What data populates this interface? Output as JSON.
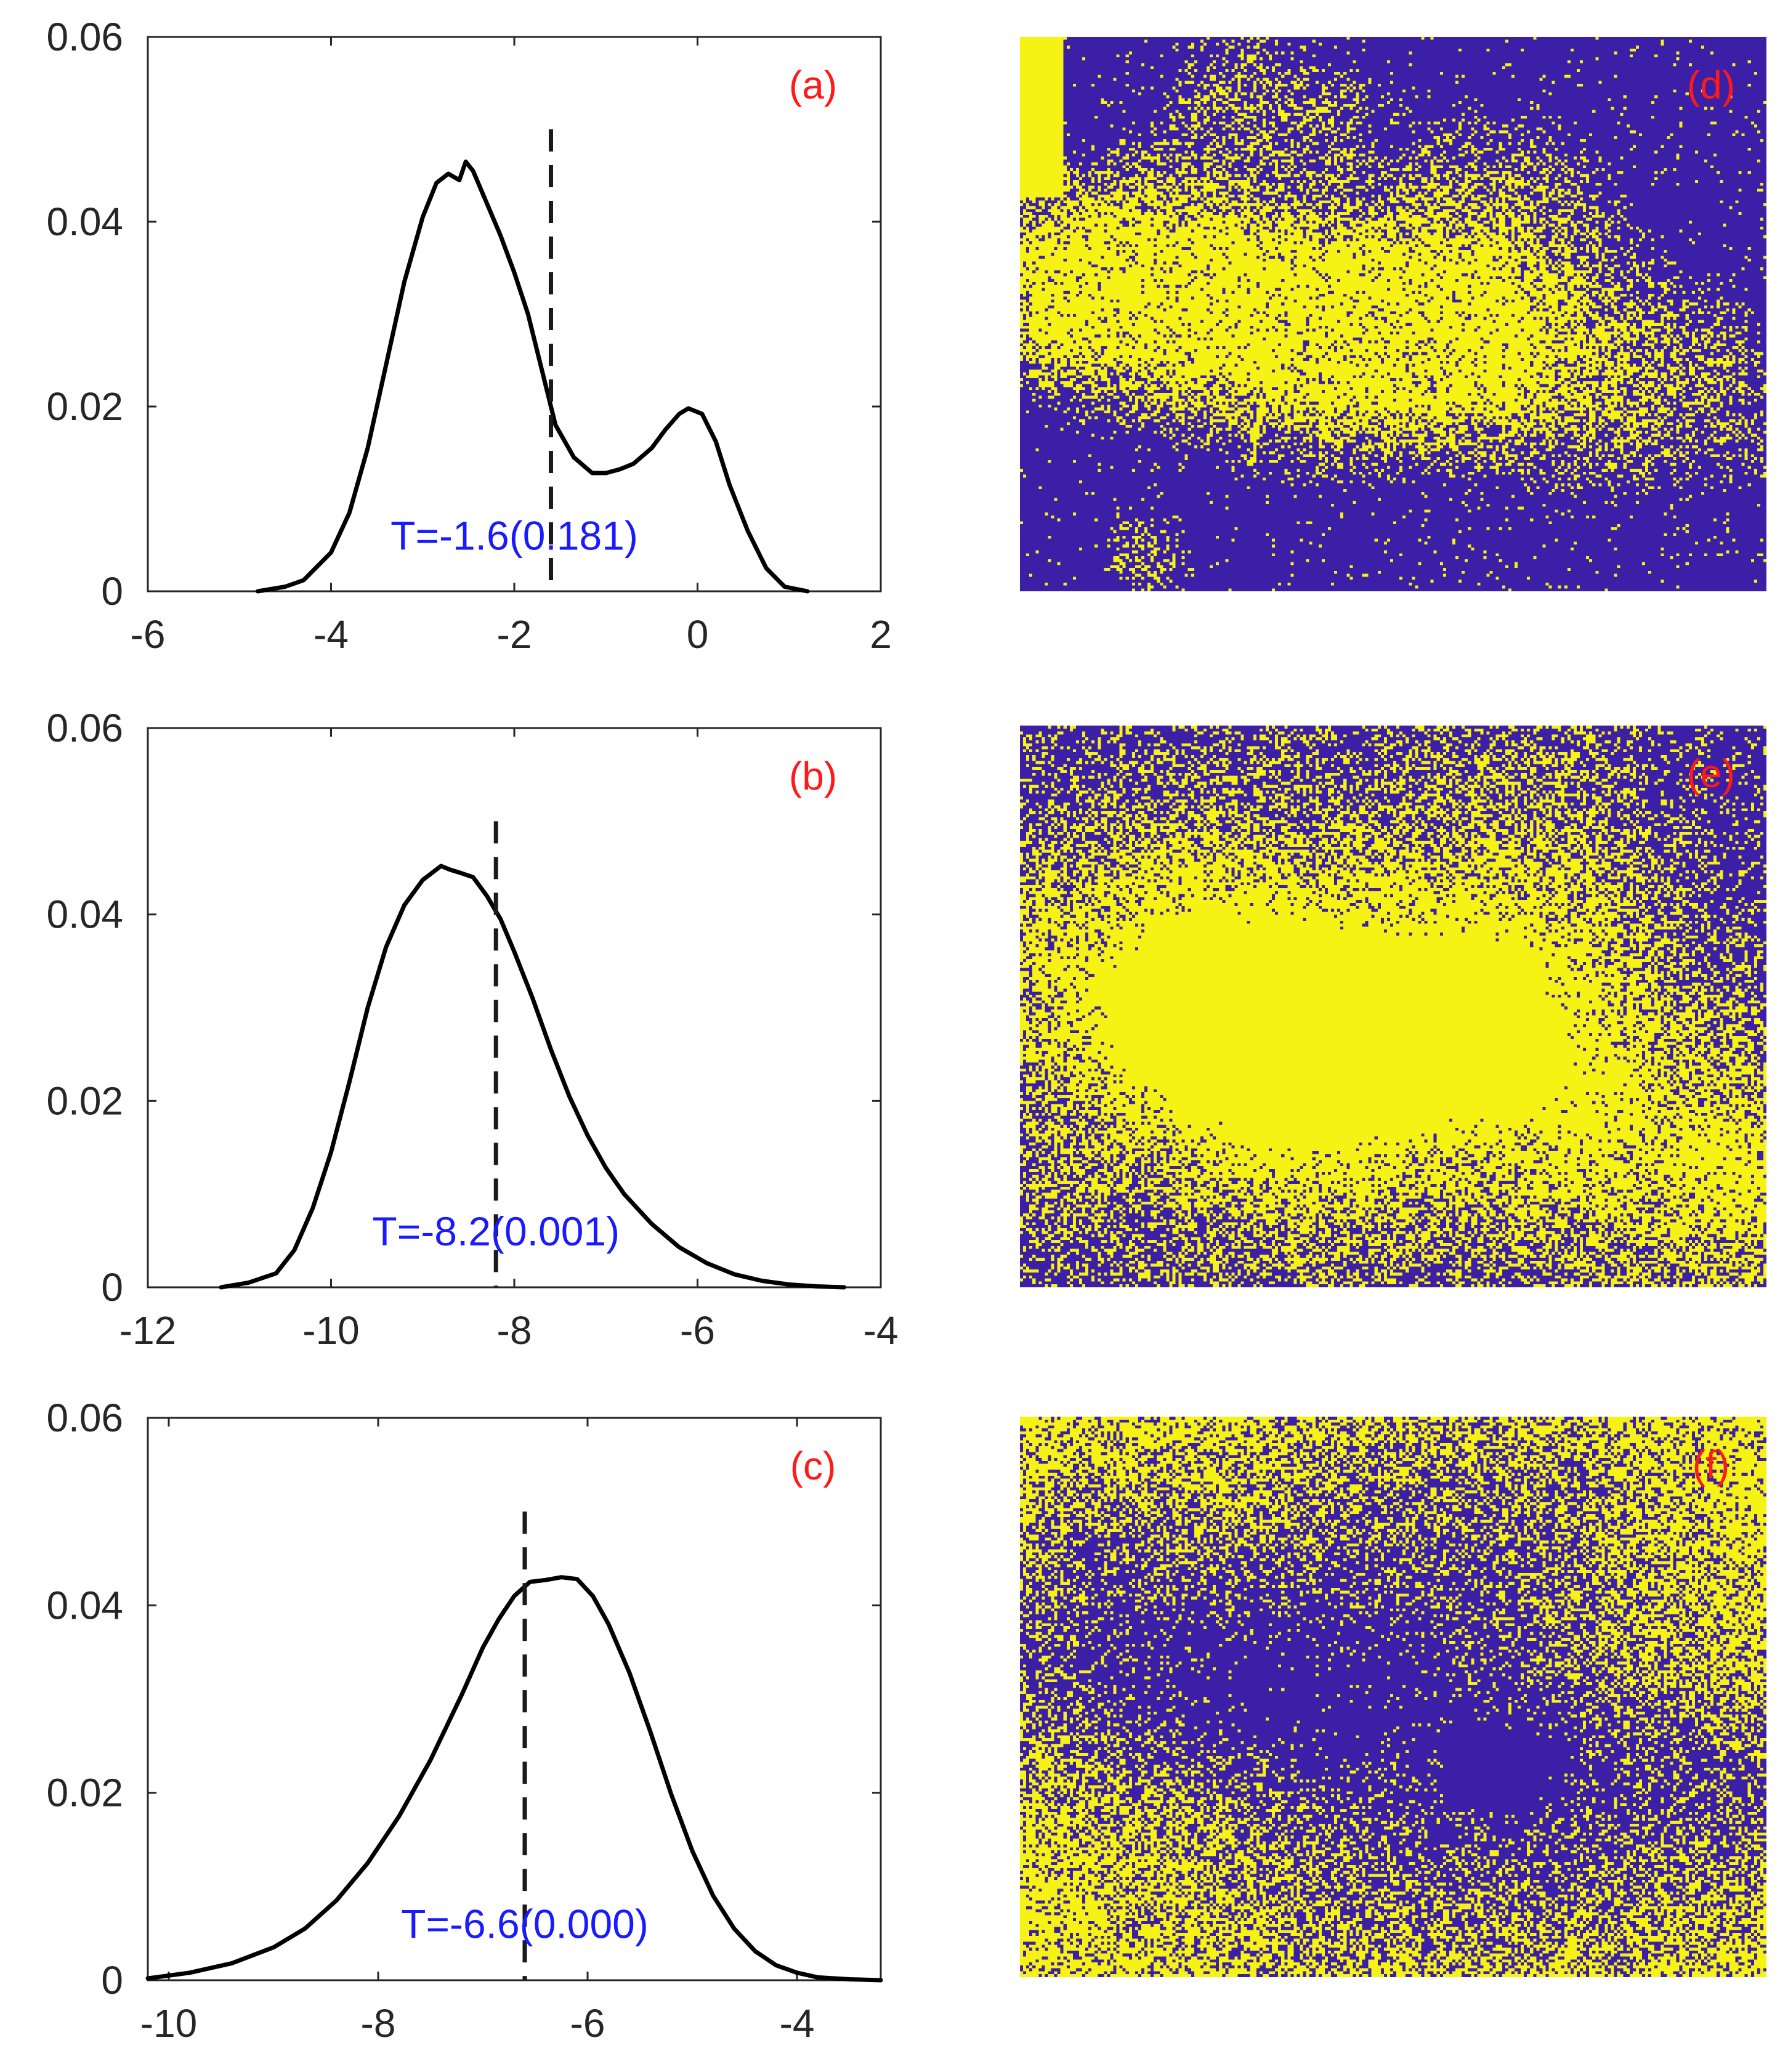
{
  "chart_data": [
    {
      "panel": "(a)",
      "type": "line",
      "title": "",
      "xlabel": "",
      "ylabel": "",
      "xlim": [
        -6,
        2
      ],
      "ylim": [
        0,
        0.06
      ],
      "xticks": [
        -6,
        -4,
        -2,
        0,
        2
      ],
      "yticks": [
        0,
        0.02,
        0.04,
        0.06
      ],
      "xtick_labels": [
        "-6",
        "-4",
        "-2",
        "0",
        "2"
      ],
      "ytick_labels": [
        "0",
        "0.02",
        "0.04",
        "0.06"
      ],
      "series": [
        {
          "name": "density",
          "x": [
            -4.8,
            -4.5,
            -4.3,
            -4.0,
            -3.8,
            -3.6,
            -3.4,
            -3.2,
            -3.0,
            -2.85,
            -2.72,
            -2.6,
            -2.53,
            -2.45,
            -2.3,
            -2.15,
            -2.0,
            -1.85,
            -1.7,
            -1.55,
            -1.35,
            -1.15,
            -1.0,
            -0.85,
            -0.7,
            -0.5,
            -0.35,
            -0.2,
            -0.1,
            0.05,
            0.2,
            0.35,
            0.55,
            0.75,
            0.95,
            1.2
          ],
          "y": [
            0.0,
            0.0005,
            0.0012,
            0.0042,
            0.0085,
            0.0155,
            0.0245,
            0.0335,
            0.0405,
            0.0442,
            0.0452,
            0.0445,
            0.0465,
            0.0455,
            0.042,
            0.0385,
            0.0345,
            0.03,
            0.024,
            0.018,
            0.0145,
            0.0128,
            0.0128,
            0.0132,
            0.0138,
            0.0155,
            0.0175,
            0.0192,
            0.0198,
            0.0192,
            0.0162,
            0.0115,
            0.0065,
            0.0025,
            0.0005,
            0.0
          ]
        }
      ],
      "threshold_x": -1.6,
      "threshold_top": 0.05,
      "annotation": "T=-1.6(0.181)",
      "annotation_x": -2.0,
      "annotation_y": 0.0045
    },
    {
      "panel": "(b)",
      "type": "line",
      "title": "",
      "xlabel": "",
      "ylabel": "",
      "xlim": [
        -12,
        -4
      ],
      "ylim": [
        0,
        0.06
      ],
      "xticks": [
        -12,
        -10,
        -8,
        -6,
        -4
      ],
      "yticks": [
        0,
        0.02,
        0.04,
        0.06
      ],
      "xtick_labels": [
        "-12",
        "-10",
        "-8",
        "-6",
        "-4"
      ],
      "ytick_labels": [
        "0",
        "0.02",
        "0.04",
        "0.06"
      ],
      "series": [
        {
          "name": "density",
          "x": [
            -11.2,
            -10.9,
            -10.6,
            -10.4,
            -10.2,
            -10.0,
            -9.8,
            -9.6,
            -9.4,
            -9.2,
            -9.0,
            -8.8,
            -8.7,
            -8.6,
            -8.45,
            -8.3,
            -8.15,
            -8.0,
            -7.8,
            -7.6,
            -7.4,
            -7.2,
            -7.0,
            -6.8,
            -6.5,
            -6.2,
            -5.9,
            -5.6,
            -5.3,
            -5.0,
            -4.7,
            -4.4
          ],
          "y": [
            0.0,
            0.0005,
            0.0015,
            0.004,
            0.0085,
            0.0145,
            0.022,
            0.03,
            0.0365,
            0.041,
            0.0437,
            0.0452,
            0.0448,
            0.0445,
            0.044,
            0.042,
            0.0395,
            0.036,
            0.031,
            0.0255,
            0.0205,
            0.0163,
            0.0128,
            0.01,
            0.0068,
            0.0043,
            0.0026,
            0.0014,
            0.0007,
            0.0003,
            0.0001,
            0.0
          ]
        }
      ],
      "threshold_x": -8.2,
      "threshold_top": 0.05,
      "annotation": "T=-8.2(0.001)",
      "annotation_x": -8.2,
      "annotation_y": 0.0045
    },
    {
      "panel": "(c)",
      "type": "line",
      "title": "",
      "xlabel": "",
      "ylabel": "",
      "xlim": [
        -10.2,
        -3.2
      ],
      "ylim": [
        0,
        0.06
      ],
      "xticks": [
        -10,
        -8,
        -6,
        -4
      ],
      "yticks": [
        0,
        0.02,
        0.04,
        0.06
      ],
      "xtick_labels": [
        "-10",
        "-8",
        "-6",
        "-4"
      ],
      "ytick_labels": [
        "0",
        "0.02",
        "0.04",
        "0.06"
      ],
      "series": [
        {
          "name": "density",
          "x": [
            -10.2,
            -9.8,
            -9.4,
            -9.0,
            -8.7,
            -8.4,
            -8.1,
            -7.8,
            -7.5,
            -7.2,
            -7.0,
            -6.85,
            -6.7,
            -6.55,
            -6.4,
            -6.25,
            -6.1,
            -5.95,
            -5.8,
            -5.6,
            -5.4,
            -5.2,
            -5.0,
            -4.8,
            -4.6,
            -4.4,
            -4.2,
            -4.0,
            -3.8,
            -3.5,
            -3.2
          ],
          "y": [
            0.0002,
            0.0008,
            0.0018,
            0.0035,
            0.0055,
            0.0085,
            0.0125,
            0.0175,
            0.0235,
            0.0305,
            0.0355,
            0.0385,
            0.041,
            0.0425,
            0.0427,
            0.043,
            0.0428,
            0.041,
            0.038,
            0.0328,
            0.0265,
            0.0198,
            0.0138,
            0.009,
            0.0055,
            0.0031,
            0.0016,
            0.0008,
            0.0003,
            0.0001,
            0.0
          ]
        }
      ],
      "threshold_x": -6.6,
      "threshold_top": 0.05,
      "annotation": "T=-6.6(0.000)",
      "annotation_x": -6.6,
      "annotation_y": 0.0045
    },
    {
      "panel": "(d)",
      "type": "heatmap",
      "title": "",
      "description_colors": {
        "low": "#3b1fa6",
        "high": "#f5f214"
      },
      "pattern": "sparse-branching"
    },
    {
      "panel": "(e)",
      "type": "heatmap",
      "title": "",
      "pattern": "mixed"
    },
    {
      "panel": "(f)",
      "type": "heatmap",
      "title": "",
      "pattern": "dense"
    }
  ],
  "colors": {
    "curve": "#000000",
    "threshold": "#1a1a1a",
    "annotation": "#1a1aff",
    "panel_label": "#ff1a1a",
    "map_low": "#3b1fa6",
    "map_high": "#f5f214",
    "axis": "#262626"
  }
}
